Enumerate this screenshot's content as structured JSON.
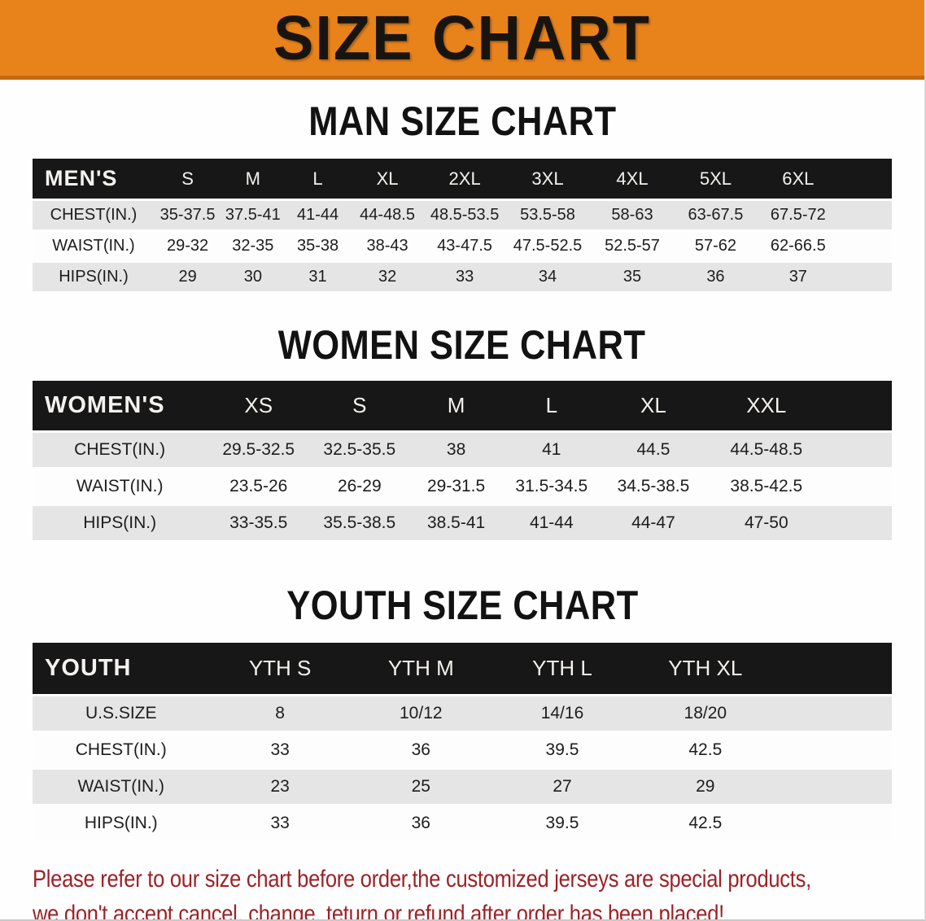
{
  "banner": {
    "title": "SIZE CHART",
    "background_color": "#E8831C",
    "border_color": "#C4690F",
    "text_color": "#181511"
  },
  "sections": [
    {
      "id": "men",
      "heading": "MAN SIZE CHART",
      "table": {
        "header_label": "MEN'S",
        "columns": [
          "S",
          "M",
          "L",
          "XL",
          "2XL",
          "3XL",
          "4XL",
          "5XL",
          "6XL"
        ],
        "rows": [
          {
            "label": "CHEST(IN.)",
            "values": [
              "35-37.5",
              "37.5-41",
              "41-44",
              "44-48.5",
              "48.5-53.5",
              "53.5-58",
              "58-63",
              "63-67.5",
              "67.5-72"
            ]
          },
          {
            "label": "WAIST(IN.)",
            "values": [
              "29-32",
              "32-35",
              "35-38",
              "38-43",
              "43-47.5",
              "47.5-52.5",
              "52.5-57",
              "57-62",
              "62-66.5"
            ]
          },
          {
            "label": "HIPS(IN.)",
            "values": [
              "29",
              "30",
              "31",
              "32",
              "33",
              "34",
              "35",
              "36",
              "37"
            ]
          }
        ]
      }
    },
    {
      "id": "women",
      "heading": "WOMEN SIZE CHART",
      "table": {
        "header_label": "WOMEN'S",
        "columns": [
          "XS",
          "S",
          "M",
          "L",
          "XL",
          "XXL"
        ],
        "rows": [
          {
            "label": "CHEST(IN.)",
            "values": [
              "29.5-32.5",
              "32.5-35.5",
              "38",
              "41",
              "44.5",
              "44.5-48.5"
            ]
          },
          {
            "label": "WAIST(IN.)",
            "values": [
              "23.5-26",
              "26-29",
              "29-31.5",
              "31.5-34.5",
              "34.5-38.5",
              "38.5-42.5"
            ]
          },
          {
            "label": "HIPS(IN.)",
            "values": [
              "33-35.5",
              "35.5-38.5",
              "38.5-41",
              "41-44",
              "44-47",
              "47-50"
            ]
          }
        ]
      }
    },
    {
      "id": "youth",
      "heading": "YOUTH SIZE CHART",
      "table": {
        "header_label": "YOUTH",
        "columns": [
          "YTH S",
          "YTH M",
          "YTH L",
          "YTH XL"
        ],
        "rows": [
          {
            "label": "U.S.SIZE",
            "values": [
              "8",
              "10/12",
              "14/16",
              "18/20"
            ]
          },
          {
            "label": "CHEST(IN.)",
            "values": [
              "33",
              "36",
              "39.5",
              "42.5"
            ]
          },
          {
            "label": "WAIST(IN.)",
            "values": [
              "23",
              "25",
              "27",
              "29"
            ]
          },
          {
            "label": "HIPS(IN.)",
            "values": [
              "33",
              "36",
              "39.5",
              "42.5"
            ]
          }
        ]
      }
    }
  ],
  "disclaimer": {
    "line1": "Please refer to our size chart before order,the customized jerseys are special products,",
    "line2": "we don't accept cancel, change, teturn or refund after order has been placed!",
    "text_color": "#9D2126"
  },
  "colors": {
    "table_header_bg": "#171717",
    "table_header_text": "#F4F2EE",
    "row_shaded": "#E5E5E5",
    "row_plain": "#FDFDFD"
  }
}
